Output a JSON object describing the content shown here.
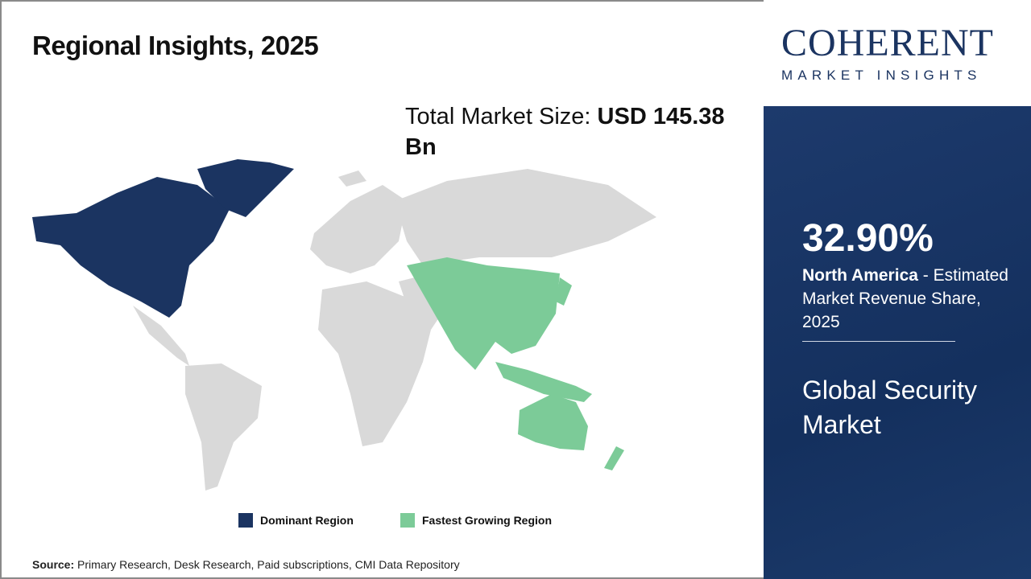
{
  "title": "Regional Insights, 2025",
  "total_market": {
    "label": "Total Market Size:",
    "value": "USD 145.38 Bn"
  },
  "legend": [
    {
      "label": "Dominant Region",
      "color": "#1b3461"
    },
    {
      "label": "Fastest Growing Region",
      "color": "#7ccb98"
    }
  ],
  "source": {
    "label": "Source:",
    "text": "Primary Research, Desk Research, Paid subscriptions, CMI Data Repository"
  },
  "logo": {
    "main": "COHERENT",
    "sub": "MARKET INSIGHTS"
  },
  "highlight": {
    "percent": "32.90%",
    "region": "North America",
    "description": " - Estimated Market Revenue Share, 2025",
    "market": "Global Security Market"
  },
  "map": {
    "dominant": "North America",
    "fastest_growing": "Asia Pacific",
    "other_color": "#d9d9d9"
  }
}
